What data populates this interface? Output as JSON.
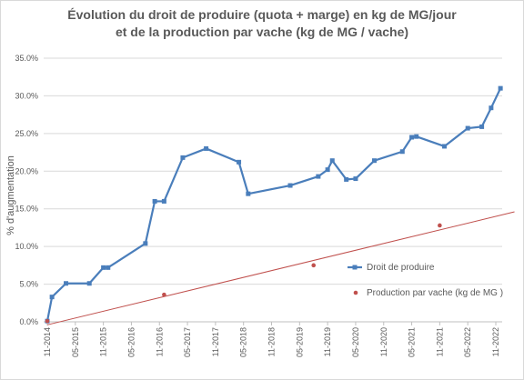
{
  "chart_data": {
    "type": "line",
    "title_line1": "Évolution du droit de produire (quota + marge) en kg de MG/jour",
    "title_line2": "et de la production par vache (kg de MG / vache)",
    "xlabel": "",
    "ylabel": "% d'augmentation",
    "ylim": [
      0,
      35
    ],
    "yticks": [
      "0.0%",
      "5.0%",
      "10.0%",
      "15.0%",
      "20.0%",
      "25.0%",
      "30.0%",
      "35.0%"
    ],
    "xticks": [
      "11-2014",
      "05-2015",
      "11-2015",
      "05-2016",
      "11-2016",
      "05-2017",
      "11-2017",
      "05-2018",
      "11-2018",
      "05-2019",
      "11-2019",
      "05-2020",
      "11-2020",
      "05-2021",
      "11-2021",
      "05-2022",
      "11-2022"
    ],
    "grid": "horizontal",
    "legend_position": "right",
    "series": [
      {
        "name": "Droit de produire",
        "kind": "line-markers",
        "color": "#4a7ebb",
        "x": [
          "11-2014",
          "12-2014",
          "03-2015",
          "08-2015",
          "11-2015",
          "12-2015",
          "08-2016",
          "10-2016",
          "12-2016",
          "04-2017",
          "09-2017",
          "04-2018",
          "06-2018",
          "03-2019",
          "09-2019",
          "11-2019",
          "12-2019",
          "03-2020",
          "05-2020",
          "09-2020",
          "03-2021",
          "05-2021",
          "06-2021",
          "12-2021",
          "05-2022",
          "08-2022",
          "10-2022",
          "12-2022"
        ],
        "values": [
          0.1,
          3.3,
          5.1,
          5.1,
          7.2,
          7.2,
          10.4,
          16.0,
          16.0,
          21.8,
          23.0,
          21.2,
          17.0,
          18.1,
          19.3,
          20.2,
          21.4,
          18.9,
          19.0,
          21.4,
          22.6,
          24.5,
          24.6,
          23.3,
          25.7,
          25.9,
          28.4,
          31.0
        ]
      },
      {
        "name": "Production par vache (kg de MG )",
        "kind": "markers",
        "color": "#c0504d",
        "x": [
          "11-2014",
          "12-2016",
          "08-2019",
          "11-2021"
        ],
        "values": [
          0.1,
          3.6,
          7.5,
          12.8
        ]
      }
    ],
    "trendline": {
      "series": "Production par vache (kg de MG )",
      "color": "#c0504d",
      "from": {
        "x": "11-2014",
        "y": -0.4
      },
      "to": {
        "x": "03-2023",
        "y": 14.6
      }
    }
  }
}
